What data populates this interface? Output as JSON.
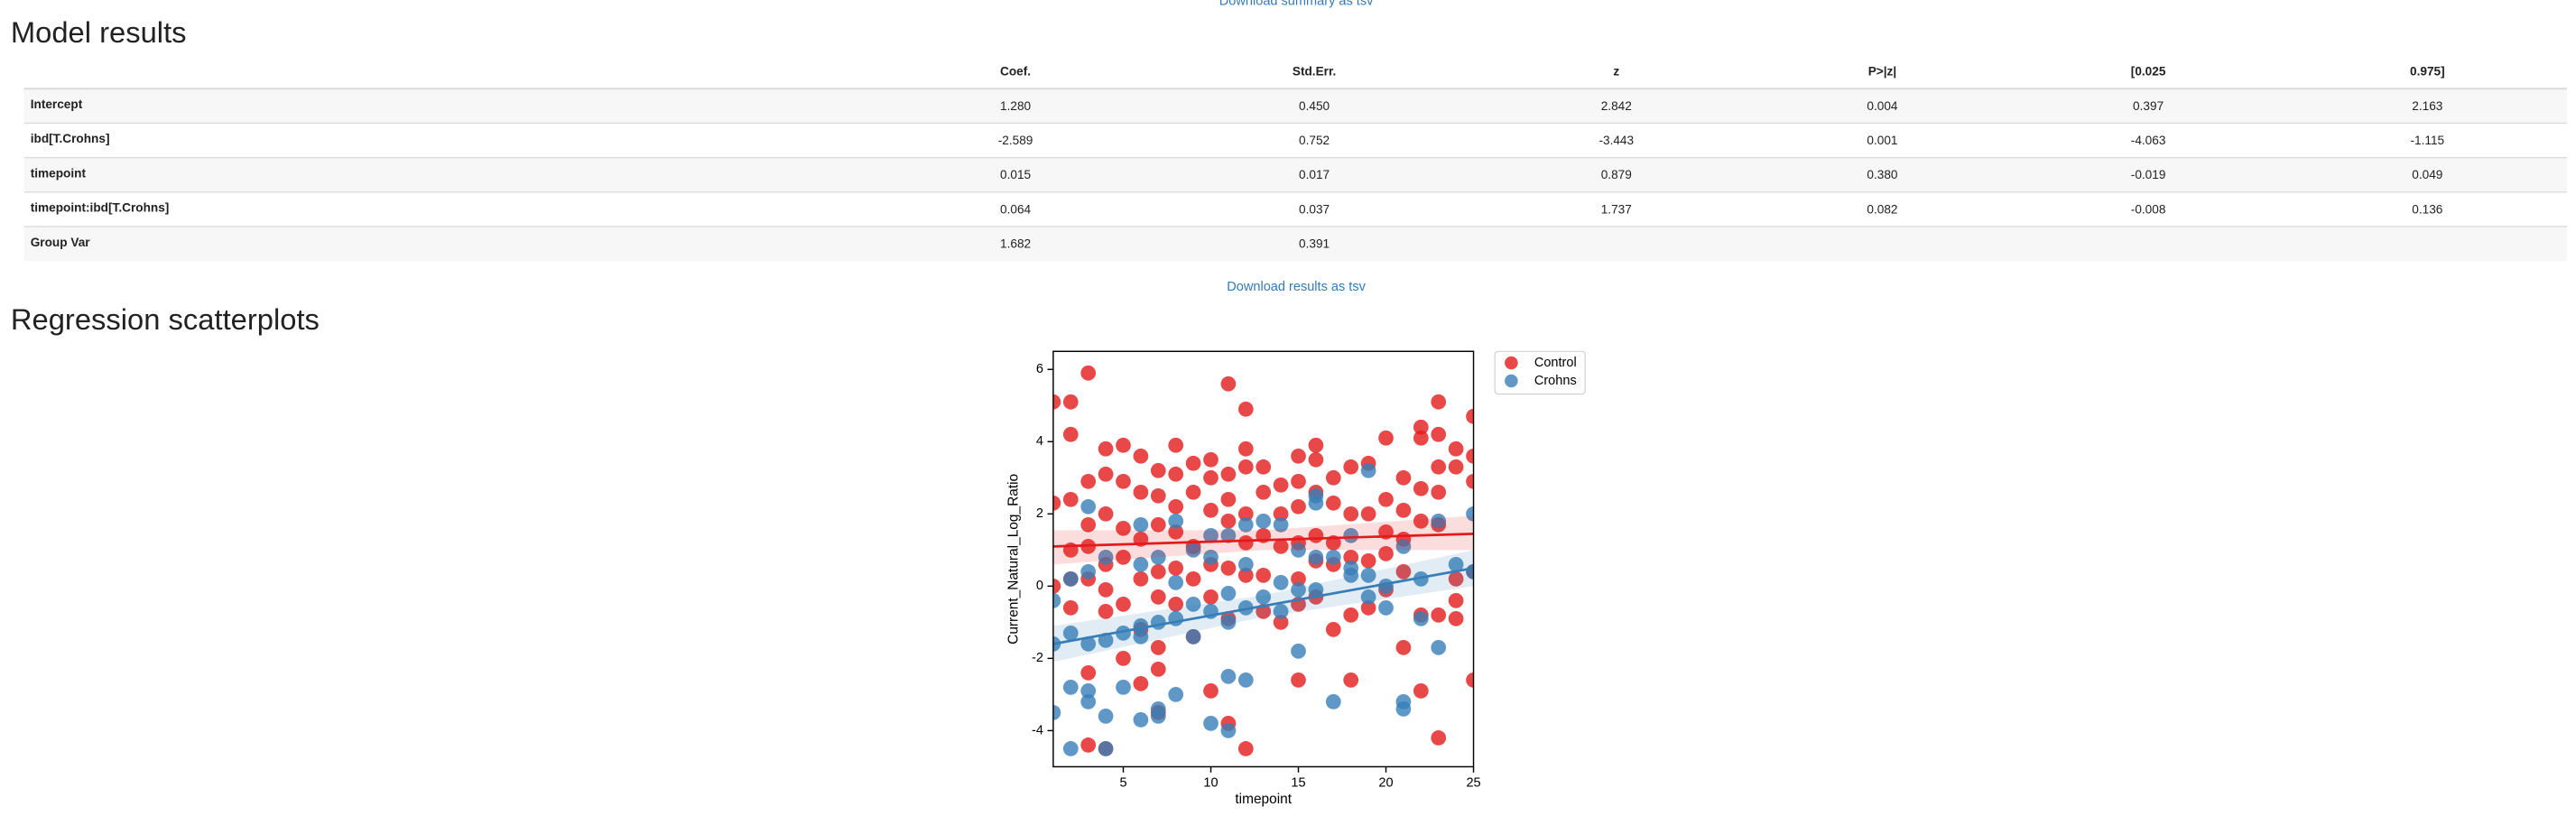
{
  "links": {
    "summary": "Download summary as tsv",
    "results": "Download results as tsv"
  },
  "model_results": {
    "heading": "Model results",
    "table": {
      "columns": [
        "Coef.",
        "Std.Err.",
        "z",
        "P>|z|",
        "[0.025",
        "0.975]"
      ],
      "rows": [
        [
          "Intercept",
          "1.280",
          "0.450",
          "2.842",
          "0.004",
          "0.397",
          "2.163"
        ],
        [
          "ibd[T.Crohns]",
          "-2.589",
          "0.752",
          "-3.443",
          "0.001",
          "-4.063",
          "-1.115"
        ],
        [
          "timepoint",
          "0.015",
          "0.017",
          "0.879",
          "0.380",
          "-0.019",
          "0.049"
        ],
        [
          "timepoint:ibd[T.Crohns]",
          "0.064",
          "0.037",
          "1.737",
          "0.082",
          "-0.008",
          "0.136"
        ],
        [
          "Group Var",
          "1.682",
          "0.391"
        ]
      ]
    }
  },
  "scatter_heading": "Regression scatterplots",
  "chart_data": {
    "type": "scatter",
    "xlabel": "timepoint",
    "ylabel": "Current_Natural_Log_Ratio",
    "xlim": [
      1,
      25
    ],
    "ylim": [
      -5,
      6.5
    ],
    "xticks": [
      5,
      10,
      15,
      20,
      25
    ],
    "yticks": [
      -4,
      -2,
      0,
      2,
      4,
      6
    ],
    "legend": "outside-upper-right",
    "series": [
      {
        "name": "Control",
        "color": "#e41a1c",
        "x": [
          1,
          1,
          1,
          2,
          2,
          2,
          2,
          2,
          2,
          3,
          3,
          3,
          3,
          3,
          3,
          3,
          4,
          4,
          4,
          4,
          4,
          4,
          4,
          5,
          5,
          5,
          5,
          5,
          5,
          6,
          6,
          6,
          6,
          6,
          6,
          7,
          7,
          7,
          7,
          7,
          7,
          7,
          7,
          8,
          8,
          8,
          8,
          8,
          8,
          9,
          9,
          9,
          9,
          9,
          10,
          10,
          10,
          10,
          10,
          10,
          11,
          11,
          11,
          11,
          11,
          11,
          11,
          12,
          12,
          12,
          12,
          12,
          12,
          12,
          13,
          13,
          13,
          13,
          13,
          14,
          14,
          14,
          14,
          15,
          15,
          15,
          15,
          15,
          15,
          15,
          16,
          16,
          16,
          16,
          16,
          16,
          17,
          17,
          17,
          17,
          17,
          18,
          18,
          18,
          18,
          18,
          19,
          19,
          19,
          19,
          20,
          20,
          20,
          20,
          20,
          21,
          21,
          21,
          21,
          21,
          22,
          22,
          22,
          22,
          22,
          22,
          23,
          23,
          23,
          23,
          23,
          23,
          23,
          24,
          24,
          24,
          24,
          24,
          25,
          25,
          25,
          25,
          25
        ],
        "values": [
          5.1,
          2.3,
          0,
          5.1,
          4.2,
          2.4,
          1.0,
          0.2,
          -0.6,
          5.9,
          2.9,
          1.7,
          1.1,
          0.2,
          -2.4,
          -4.4,
          3.8,
          3.1,
          2.0,
          0.6,
          -0.1,
          -0.7,
          -4.5,
          3.9,
          2.9,
          1.6,
          0.8,
          -0.5,
          -2.0,
          3.6,
          2.6,
          1.3,
          0.2,
          -1.2,
          -2.7,
          3.2,
          2.5,
          1.7,
          0.4,
          -0.3,
          -1.7,
          -2.3,
          -3.5,
          3.9,
          3.1,
          2.2,
          1.5,
          0.5,
          -0.5,
          3.4,
          2.6,
          1.1,
          0.2,
          -1.4,
          3.5,
          3.0,
          2.1,
          0.6,
          -0.3,
          -2.9,
          5.6,
          3.1,
          2.4,
          1.8,
          0.5,
          -0.9,
          -3.8,
          4.9,
          3.8,
          3.3,
          2.0,
          1.2,
          0.3,
          -4.5,
          3.3,
          2.6,
          1.4,
          0.3,
          -0.7,
          2.8,
          2.0,
          1.1,
          -1.0,
          3.6,
          2.9,
          2.2,
          1.2,
          0.2,
          -0.5,
          -2.6,
          3.9,
          3.5,
          2.6,
          1.4,
          0.7,
          -0.3,
          3.0,
          2.3,
          1.2,
          0.6,
          -1.2,
          3.3,
          2.0,
          0.8,
          -0.8,
          -2.6,
          3.4,
          2.0,
          0.7,
          -0.6,
          4.1,
          2.4,
          1.5,
          0.9,
          -0.1,
          3.0,
          2.1,
          1.3,
          0.4,
          -1.7,
          4.4,
          4.1,
          2.7,
          1.8,
          -0.8,
          -2.9,
          5.1,
          4.2,
          3.3,
          2.6,
          1.7,
          -0.8,
          -4.2,
          3.8,
          3.3,
          0.2,
          -0.4,
          -0.9,
          4.7,
          3.6,
          2.9,
          0.4,
          -2.6
        ],
        "fit": {
          "x": [
            1,
            13,
            25
          ],
          "values": [
            1.1,
            1.275,
            1.45
          ],
          "lower": [
            0.6,
            1.0,
            1.0
          ],
          "upper": [
            1.55,
            1.55,
            1.95
          ]
        }
      },
      {
        "name": "Crohns",
        "color": "#377eb8",
        "x": [
          1,
          1,
          1,
          2,
          2,
          2,
          2,
          3,
          3,
          3,
          3,
          3,
          4,
          4,
          4,
          4,
          5,
          5,
          6,
          6,
          6,
          6,
          6,
          7,
          7,
          7,
          7,
          8,
          8,
          8,
          8,
          9,
          9,
          9,
          10,
          10,
          10,
          10,
          11,
          11,
          11,
          11,
          11,
          12,
          12,
          12,
          12,
          13,
          13,
          14,
          14,
          14,
          15,
          15,
          15,
          16,
          16,
          16,
          16,
          17,
          17,
          18,
          18,
          18,
          19,
          19,
          19,
          20,
          20,
          21,
          21,
          21,
          22,
          22,
          23,
          23,
          24,
          25,
          25
        ],
        "values": [
          -1.6,
          -3.5,
          -0.4,
          -1.3,
          -2.8,
          -4.5,
          0.2,
          2.2,
          0.4,
          -1.6,
          -2.9,
          -3.2,
          0.8,
          -1.5,
          -3.6,
          -4.5,
          -1.3,
          -2.8,
          1.7,
          0.6,
          -1.1,
          -1.4,
          -3.7,
          0.8,
          -1.0,
          -3.4,
          -3.6,
          1.8,
          0.1,
          -0.9,
          -3.0,
          1.0,
          -0.5,
          -1.4,
          1.4,
          0.8,
          -0.7,
          -3.8,
          1.4,
          -0.2,
          -1.0,
          -2.5,
          -4.0,
          1.7,
          0.6,
          -0.6,
          -2.6,
          1.8,
          -0.3,
          1.7,
          0.1,
          -0.7,
          1.0,
          -0.1,
          -1.8,
          2.5,
          2.3,
          0.8,
          -0.1,
          0.8,
          -3.2,
          1.4,
          0.5,
          0.3,
          3.2,
          0.3,
          -0.3,
          0.0,
          -0.6,
          1.1,
          -3.2,
          -3.4,
          0.2,
          -0.9,
          1.8,
          -1.7,
          0.6,
          2.0,
          0.4
        ],
        "fit": {
          "x": [
            1,
            13,
            25
          ],
          "values": [
            -1.6,
            -0.55,
            0.5
          ],
          "lower": [
            -2.1,
            -0.85,
            0.0
          ],
          "upper": [
            -1.1,
            -0.25,
            1.0
          ]
        }
      }
    ]
  }
}
